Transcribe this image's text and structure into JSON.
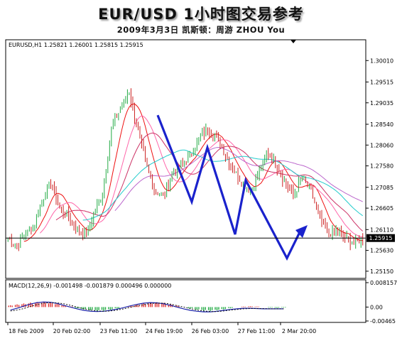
{
  "title": "EUR/USD 1小时图交易参考",
  "subtitle": "2009年3月3日   凯斯顿：周游 ZHOU You",
  "chart_data": [
    {
      "type": "line",
      "header": "EURUSD,H1  1.25821 1.26001 1.25815 1.25915",
      "ylim": [
        1.2505,
        1.3026
      ],
      "y_ticks": [
        "1.30010",
        "1.29515",
        "1.29035",
        "1.28540",
        "1.28060",
        "1.27580",
        "1.27085",
        "1.26605",
        "1.26110",
        "1.25630",
        "1.25150"
      ],
      "current_price": "1.25915",
      "x_tick_labels": [
        "18 Feb 2009",
        "20 Feb 02:00",
        "23 Feb 11:00",
        "24 Feb 19:00",
        "26 Feb 03:00",
        "27 Feb 11:00",
        "2 Mar 20:00"
      ],
      "price_path": [
        1.259,
        1.2575,
        1.26,
        1.262,
        1.268,
        1.272,
        1.266,
        1.264,
        1.261,
        1.26,
        1.265,
        1.27,
        1.285,
        1.289,
        1.293,
        1.284,
        1.276,
        1.27,
        1.269,
        1.274,
        1.276,
        1.278,
        1.282,
        1.284,
        1.283,
        1.279,
        1.275,
        1.272,
        1.27,
        1.274,
        1.279,
        1.276,
        1.272,
        1.269,
        1.273,
        1.27,
        1.264,
        1.26,
        1.261,
        1.259,
        1.258,
        1.2591
      ],
      "wave_path": [
        1.2875,
        1.2675,
        1.28,
        1.26,
        1.2725,
        1.2545,
        1.2605
      ],
      "moving_averages": [
        {
          "color": "#ee1111",
          "period": 3
        },
        {
          "color": "#ff66aa",
          "period": 6
        },
        {
          "color": "#cc3366",
          "period": 9
        },
        {
          "color": "#22cccc",
          "period": 14
        },
        {
          "color": "#bb66cc",
          "period": 20
        }
      ],
      "colors": {
        "bull": "#22aa44",
        "bear": "#cc2222",
        "wave": "#1a22cc"
      }
    },
    {
      "type": "bar",
      "header": "MACD(12,26,9) -0.001498 -0.001879 0.000496 0.000000",
      "y_ticks": [
        "0.008157",
        "0.00",
        "-0.00465"
      ],
      "ylim": [
        -0.00465,
        0.008157
      ],
      "histogram": [
        0.0006,
        0.0009,
        0.0012,
        0.0015,
        0.0017,
        0.0018,
        0.0016,
        0.0012,
        0.0007,
        0.0002,
        -0.0004,
        -0.0008,
        -0.0011,
        -0.0013,
        -0.0012,
        -0.0009,
        -0.0005,
        0.0,
        0.0004,
        0.0008,
        0.0012,
        0.0015,
        0.0016,
        0.0014,
        0.001,
        0.0005,
        0.0,
        -0.0005,
        -0.0009,
        -0.0012,
        -0.0013,
        -0.0011,
        -0.0008,
        -0.0004,
        0.0,
        0.0002,
        0.0003,
        0.0002,
        0.0,
        -0.0002,
        -0.0003,
        -0.0002
      ],
      "macd_line": [
        -0.001,
        -0.0004,
        0.0003,
        0.001,
        0.0015,
        0.0017,
        0.0016,
        0.0012,
        0.0006,
        0.0,
        -0.0006,
        -0.0011,
        -0.0014,
        -0.0015,
        -0.0014,
        -0.0011,
        -0.0007,
        -0.0002,
        0.0004,
        0.0009,
        0.0013,
        0.0015,
        0.0014,
        0.0011,
        0.0006,
        0.0,
        -0.0006,
        -0.0011,
        -0.0014,
        -0.0016,
        -0.0016,
        -0.0014,
        -0.0011,
        -0.0008,
        -0.0006,
        -0.0004,
        -0.0004,
        -0.0005,
        -0.0006,
        -0.0006,
        -0.0006,
        -0.0006
      ],
      "signal_line": [
        -0.0013,
        -0.001,
        -0.0005,
        0.0002,
        0.0008,
        0.0013,
        0.0015,
        0.0014,
        0.0011,
        0.0006,
        0.0,
        -0.0006,
        -0.001,
        -0.0013,
        -0.0014,
        -0.0013,
        -0.001,
        -0.0006,
        -0.0001,
        0.0004,
        0.0008,
        0.0012,
        0.0013,
        0.0013,
        0.001,
        0.0005,
        0.0,
        -0.0005,
        -0.001,
        -0.0013,
        -0.0015,
        -0.0015,
        -0.0013,
        -0.001,
        -0.0008,
        -0.0006,
        -0.0005,
        -0.0005,
        -0.0005,
        -0.0006,
        -0.0006,
        -0.0006
      ],
      "colors": {
        "hist_pos": "#dd3333",
        "hist_neg": "#22aa44",
        "macd": "#1a22aa",
        "signal": "#111111"
      }
    }
  ]
}
